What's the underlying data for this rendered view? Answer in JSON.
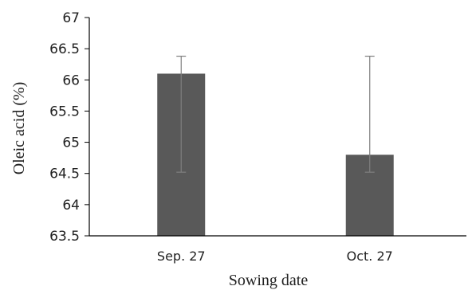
{
  "chart_data": {
    "type": "bar",
    "title": "",
    "xlabel": "Sowing date",
    "ylabel": "Oleic acid (%)",
    "categories": [
      "Sep. 27",
      "Oct. 27"
    ],
    "values": [
      66.1,
      64.8
    ],
    "error_low": [
      64.52,
      64.52
    ],
    "error_high": [
      66.38,
      66.38
    ],
    "ylim": [
      63.5,
      67
    ],
    "yticks": [
      63.5,
      64,
      64.5,
      65,
      65.5,
      66,
      66.5,
      67
    ],
    "ytick_labels": [
      "63.5",
      "64",
      "64.5",
      "65",
      "65.5",
      "66",
      "66.5",
      "67"
    ],
    "grid": false,
    "legend": "none",
    "bar_color": "#595959",
    "error_bar_color": "#7f7f7f"
  }
}
